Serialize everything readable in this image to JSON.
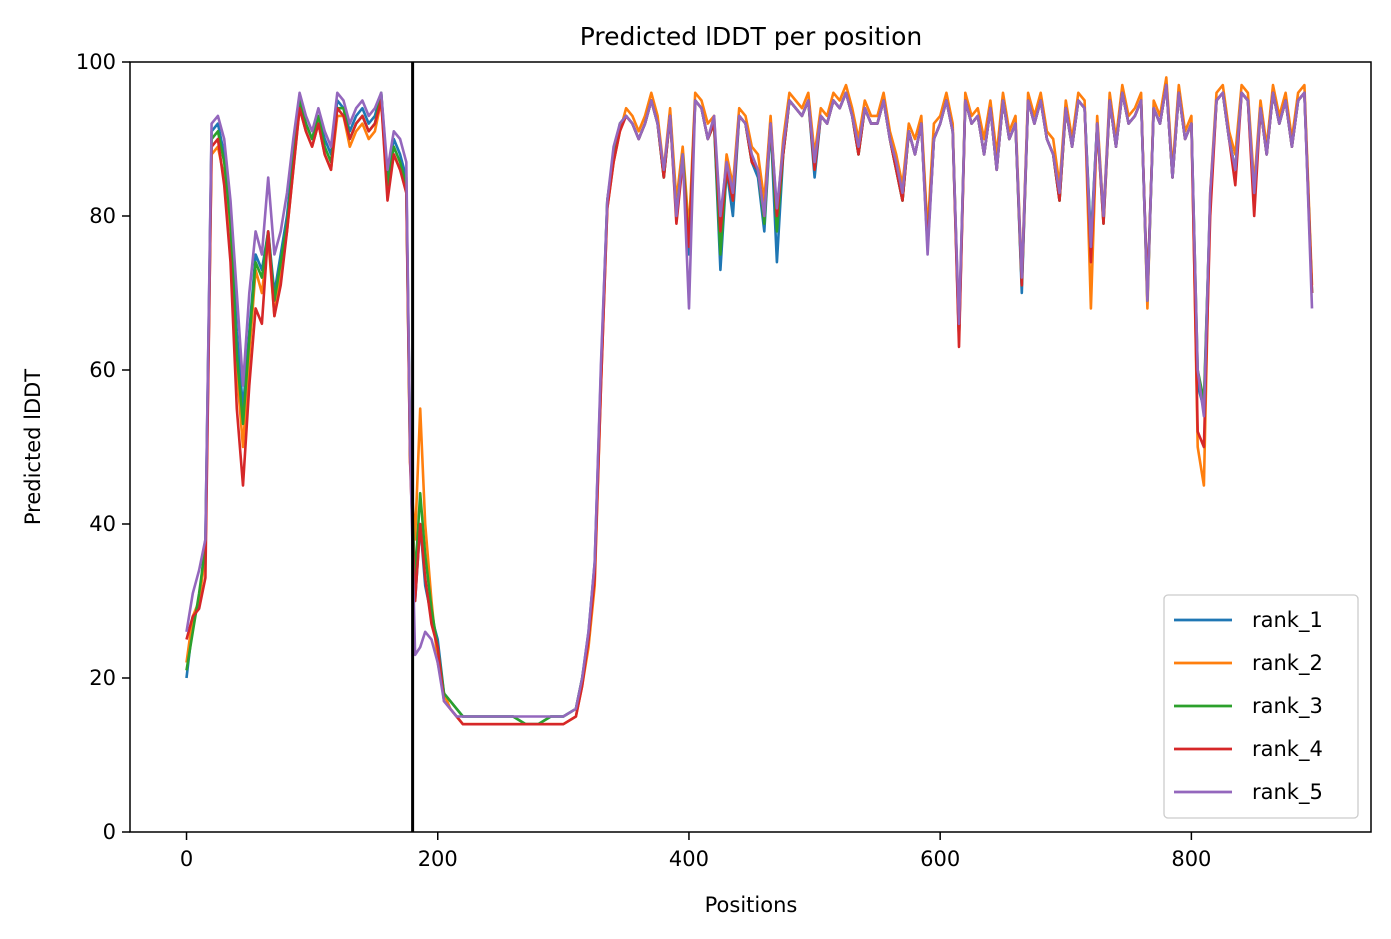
{
  "chart_data": {
    "type": "line",
    "title": "Predicted lDDT per position",
    "xlabel": "Positions",
    "ylabel": "Predicted lDDT",
    "xlim": [
      -45,
      943
    ],
    "ylim": [
      0,
      100
    ],
    "xticks": [
      0,
      200,
      400,
      600,
      800
    ],
    "yticks": [
      0,
      20,
      40,
      60,
      80,
      100
    ],
    "grid": false,
    "legend_position": "lower-right",
    "vline": 180,
    "colors": {
      "vline": "#000000"
    },
    "x": [
      0,
      5,
      10,
      15,
      20,
      25,
      30,
      35,
      40,
      45,
      50,
      55,
      60,
      65,
      70,
      75,
      80,
      85,
      90,
      95,
      100,
      105,
      110,
      115,
      120,
      125,
      130,
      135,
      140,
      145,
      150,
      155,
      160,
      165,
      170,
      175,
      178,
      182,
      186,
      190,
      195,
      200,
      205,
      210,
      215,
      220,
      230,
      240,
      250,
      260,
      270,
      280,
      290,
      300,
      310,
      315,
      320,
      325,
      330,
      335,
      340,
      345,
      350,
      355,
      360,
      365,
      370,
      375,
      380,
      385,
      390,
      395,
      400,
      405,
      410,
      415,
      420,
      425,
      430,
      435,
      440,
      445,
      450,
      455,
      460,
      465,
      470,
      475,
      480,
      485,
      490,
      495,
      500,
      505,
      510,
      515,
      520,
      525,
      530,
      535,
      540,
      545,
      550,
      555,
      560,
      565,
      570,
      575,
      580,
      585,
      590,
      595,
      600,
      605,
      610,
      615,
      620,
      625,
      630,
      635,
      640,
      645,
      650,
      655,
      660,
      665,
      670,
      675,
      680,
      685,
      690,
      695,
      700,
      705,
      710,
      715,
      720,
      725,
      730,
      735,
      740,
      745,
      750,
      755,
      760,
      765,
      770,
      775,
      780,
      785,
      790,
      795,
      800,
      805,
      810,
      815,
      820,
      825,
      830,
      835,
      840,
      845,
      850,
      855,
      860,
      865,
      870,
      875,
      880,
      885,
      890,
      896
    ],
    "series": [
      {
        "name": "rank_1",
        "color": "#1f77b4",
        "values": [
          20,
          27,
          30,
          38,
          91,
          92,
          88,
          80,
          65,
          55,
          65,
          75,
          73,
          78,
          70,
          75,
          80,
          88,
          95,
          92,
          90,
          93,
          90,
          88,
          95,
          94,
          91,
          93,
          94,
          92,
          93,
          96,
          85,
          90,
          88,
          85,
          50,
          30,
          40,
          32,
          28,
          25,
          18,
          17,
          16,
          15,
          15,
          15,
          15,
          15,
          14,
          14,
          15,
          15,
          16,
          20,
          26,
          35,
          60,
          82,
          88,
          92,
          93,
          92,
          90,
          92,
          95,
          92,
          85,
          93,
          80,
          88,
          75,
          95,
          94,
          90,
          92,
          73,
          86,
          80,
          93,
          92,
          87,
          85,
          78,
          92,
          74,
          88,
          95,
          94,
          93,
          95,
          85,
          93,
          92,
          95,
          94,
          96,
          93,
          88,
          94,
          92,
          92,
          95,
          90,
          86,
          82,
          91,
          88,
          92,
          76,
          90,
          92,
          95,
          91,
          64,
          95,
          92,
          93,
          88,
          94,
          86,
          95,
          90,
          92,
          70,
          95,
          92,
          95,
          90,
          88,
          82,
          94,
          89,
          95,
          94,
          77,
          92,
          80,
          95,
          89,
          96,
          92,
          93,
          95,
          70,
          94,
          92,
          97,
          85,
          96,
          90,
          92,
          58,
          55,
          82,
          95,
          96,
          90,
          86,
          96,
          95,
          82,
          94,
          88,
          96,
          92,
          95,
          89,
          95,
          96,
          70
        ]
      },
      {
        "name": "rank_2",
        "color": "#ff7f0e",
        "values": [
          22,
          28,
          30,
          36,
          88,
          89,
          85,
          78,
          60,
          50,
          62,
          73,
          70,
          77,
          67,
          73,
          78,
          86,
          94,
          91,
          89,
          92,
          88,
          86,
          93,
          93,
          89,
          91,
          92,
          90,
          91,
          95,
          83,
          88,
          86,
          84,
          48,
          38,
          55,
          40,
          30,
          22,
          18,
          16,
          15,
          14,
          14,
          14,
          14,
          14,
          14,
          14,
          14,
          14,
          15,
          19,
          24,
          32,
          58,
          81,
          87,
          91,
          94,
          93,
          91,
          93,
          96,
          93,
          86,
          94,
          82,
          89,
          78,
          96,
          95,
          92,
          93,
          78,
          88,
          84,
          94,
          93,
          89,
          88,
          82,
          93,
          80,
          90,
          96,
          95,
          94,
          96,
          88,
          94,
          93,
          96,
          95,
          97,
          94,
          90,
          95,
          93,
          93,
          96,
          91,
          88,
          84,
          92,
          90,
          93,
          78,
          92,
          93,
          96,
          92,
          64,
          96,
          93,
          94,
          90,
          95,
          88,
          96,
          91,
          93,
          72,
          96,
          93,
          96,
          91,
          90,
          84,
          95,
          90,
          96,
          95,
          68,
          93,
          80,
          96,
          90,
          97,
          93,
          94,
          96,
          68,
          95,
          93,
          98,
          86,
          97,
          91,
          93,
          50,
          45,
          83,
          96,
          97,
          91,
          88,
          97,
          96,
          84,
          95,
          89,
          97,
          93,
          96,
          90,
          96,
          97,
          71
        ]
      },
      {
        "name": "rank_3",
        "color": "#2ca02c",
        "values": [
          21,
          26,
          31,
          37,
          90,
          91,
          87,
          79,
          62,
          53,
          64,
          74,
          72,
          78,
          69,
          74,
          79,
          87,
          95,
          92,
          90,
          93,
          89,
          87,
          94,
          94,
          90,
          92,
          93,
          91,
          92,
          96,
          84,
          89,
          87,
          84,
          49,
          33,
          44,
          36,
          29,
          24,
          18,
          17,
          16,
          15,
          15,
          15,
          15,
          15,
          14,
          14,
          15,
          15,
          16,
          20,
          25,
          34,
          59,
          82,
          88,
          92,
          93,
          92,
          90,
          92,
          95,
          92,
          85,
          93,
          80,
          88,
          76,
          95,
          94,
          90,
          92,
          75,
          86,
          82,
          93,
          92,
          87,
          86,
          79,
          92,
          78,
          88,
          95,
          94,
          93,
          95,
          86,
          93,
          92,
          95,
          94,
          96,
          93,
          88,
          94,
          92,
          92,
          95,
          90,
          86,
          82,
          91,
          88,
          92,
          76,
          90,
          92,
          95,
          91,
          65,
          95,
          92,
          93,
          88,
          94,
          86,
          95,
          90,
          92,
          71,
          95,
          92,
          95,
          90,
          88,
          82,
          94,
          89,
          95,
          94,
          76,
          92,
          79,
          95,
          89,
          96,
          92,
          93,
          95,
          69,
          94,
          92,
          97,
          85,
          96,
          90,
          92,
          60,
          56,
          82,
          95,
          96,
          90,
          86,
          96,
          95,
          82,
          94,
          88,
          96,
          92,
          95,
          89,
          95,
          96,
          70
        ]
      },
      {
        "name": "rank_4",
        "color": "#d62728",
        "values": [
          25,
          28,
          29,
          33,
          89,
          90,
          84,
          74,
          55,
          45,
          58,
          68,
          66,
          78,
          67,
          71,
          78,
          86,
          94,
          91,
          89,
          92,
          88,
          86,
          94,
          93,
          90,
          92,
          93,
          91,
          92,
          95,
          82,
          88,
          86,
          83,
          48,
          30,
          40,
          33,
          27,
          24,
          17,
          16,
          15,
          14,
          14,
          14,
          14,
          14,
          14,
          14,
          14,
          14,
          15,
          19,
          25,
          33,
          58,
          81,
          87,
          91,
          93,
          92,
          90,
          92,
          95,
          92,
          85,
          93,
          79,
          87,
          76,
          95,
          94,
          90,
          92,
          78,
          86,
          82,
          93,
          92,
          87,
          86,
          80,
          92,
          80,
          88,
          95,
          94,
          93,
          95,
          86,
          93,
          92,
          95,
          94,
          96,
          93,
          88,
          94,
          92,
          92,
          95,
          90,
          86,
          82,
          91,
          88,
          92,
          76,
          90,
          92,
          95,
          91,
          63,
          95,
          92,
          93,
          88,
          94,
          86,
          95,
          90,
          92,
          71,
          95,
          92,
          95,
          90,
          88,
          82,
          94,
          89,
          95,
          94,
          74,
          92,
          79,
          95,
          89,
          96,
          92,
          93,
          95,
          70,
          94,
          92,
          97,
          85,
          96,
          90,
          92,
          52,
          50,
          80,
          95,
          96,
          90,
          84,
          96,
          95,
          80,
          94,
          88,
          96,
          92,
          95,
          89,
          95,
          96,
          70
        ]
      },
      {
        "name": "rank_5",
        "color": "#9467bd",
        "values": [
          26,
          31,
          34,
          38,
          92,
          93,
          90,
          82,
          70,
          58,
          70,
          78,
          75,
          85,
          75,
          78,
          83,
          90,
          96,
          93,
          91,
          94,
          91,
          89,
          96,
          95,
          92,
          94,
          95,
          93,
          94,
          96,
          86,
          91,
          90,
          87,
          50,
          23,
          24,
          26,
          25,
          22,
          17,
          16,
          15,
          15,
          15,
          15,
          15,
          15,
          15,
          15,
          15,
          15,
          16,
          20,
          26,
          35,
          61,
          82,
          89,
          92,
          93,
          92,
          90,
          92,
          95,
          92,
          86,
          93,
          80,
          88,
          68,
          95,
          94,
          90,
          93,
          80,
          87,
          83,
          93,
          92,
          88,
          86,
          80,
          92,
          81,
          89,
          95,
          94,
          93,
          95,
          87,
          93,
          92,
          95,
          94,
          96,
          93,
          89,
          94,
          92,
          92,
          95,
          90,
          87,
          83,
          91,
          88,
          92,
          75,
          90,
          92,
          95,
          91,
          66,
          95,
          92,
          93,
          88,
          94,
          86,
          95,
          90,
          92,
          72,
          95,
          92,
          95,
          90,
          88,
          83,
          94,
          89,
          95,
          94,
          76,
          92,
          80,
          95,
          89,
          96,
          92,
          93,
          95,
          69,
          94,
          92,
          97,
          85,
          96,
          90,
          92,
          60,
          54,
          83,
          95,
          96,
          90,
          86,
          96,
          95,
          83,
          94,
          88,
          96,
          92,
          95,
          89,
          95,
          96,
          68
        ]
      }
    ]
  }
}
